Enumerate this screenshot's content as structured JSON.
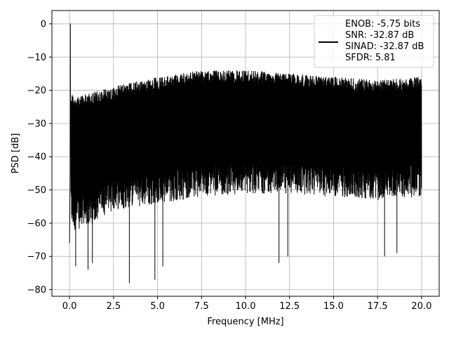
{
  "chart_data": {
    "type": "line",
    "title": "",
    "xlabel": "Frequency [MHz]",
    "ylabel": "PSD [dB]",
    "xlim": [
      -1.0,
      21.0
    ],
    "ylim": [
      -82,
      4
    ],
    "grid": true,
    "legend_position": "top-right",
    "x_ticks": [
      0.0,
      2.5,
      5.0,
      7.5,
      10.0,
      12.5,
      15.0,
      17.5,
      20.0
    ],
    "x_tick_labels": [
      "0.0",
      "2.5",
      "5.0",
      "7.5",
      "10.0",
      "12.5",
      "15.0",
      "17.5",
      "20.0"
    ],
    "y_ticks": [
      0,
      -10,
      -20,
      -30,
      -40,
      -50,
      -60,
      -70,
      -80
    ],
    "y_tick_labels": [
      "0",
      "−10",
      "−20",
      "−30",
      "−40",
      "−50",
      "−60",
      "−70",
      "−80"
    ],
    "legend_entries": [
      "ENOB: -5.75 bits",
      "SNR: -32.87 dB",
      "SINAD: -32.87 dB",
      "SFDR: 5.81"
    ],
    "series": [
      {
        "color": "#000000",
        "x_range": [
          0.0,
          20.0
        ],
        "peak": {
          "x": 0.05,
          "y": 0
        },
        "envelope_x": [
          0.0,
          0.3,
          1.0,
          2.5,
          5.0,
          7.5,
          10.0,
          12.5,
          15.0,
          17.5,
          20.0
        ],
        "envelope_upper": [
          -20,
          -22,
          -21,
          -19,
          -16,
          -14,
          -14,
          -15,
          -16,
          -17,
          -16
        ],
        "envelope_lower": [
          -66,
          -68,
          -67,
          -62,
          -60,
          -58,
          -57,
          -57,
          -58,
          -59,
          -58
        ],
        "notable_dips": [
          {
            "x": 0.35,
            "y": -73
          },
          {
            "x": 1.05,
            "y": -74
          },
          {
            "x": 1.3,
            "y": -72
          },
          {
            "x": 3.4,
            "y": -78
          },
          {
            "x": 4.85,
            "y": -77
          },
          {
            "x": 5.3,
            "y": -73
          },
          {
            "x": 11.9,
            "y": -72
          },
          {
            "x": 12.4,
            "y": -70
          },
          {
            "x": 17.9,
            "y": -70
          },
          {
            "x": 18.6,
            "y": -69
          }
        ]
      }
    ]
  }
}
